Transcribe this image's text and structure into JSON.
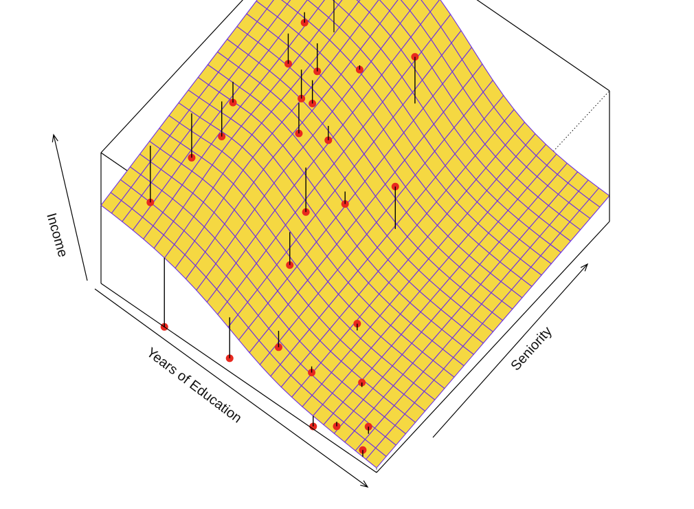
{
  "chart_data": {
    "type": "surface",
    "title": "",
    "xlabel": "Years of Education",
    "ylabel": "Seniority",
    "zlabel": "Income",
    "colors": {
      "surface_fill": "#f5d842",
      "surface_grid": "#6a2ee8",
      "points": "#e8281f",
      "residual_lines": "#000000",
      "box": "#000000"
    },
    "grid": true,
    "points": [
      [
        0.05,
        0.0,
        0.1
      ],
      [
        0.08,
        0.06,
        0.12
      ],
      [
        0.17,
        0.03,
        0.05
      ],
      [
        0.23,
        0.0,
        0.02
      ],
      [
        0.18,
        0.15,
        0.14
      ],
      [
        0.32,
        0.1,
        0.11
      ],
      [
        0.29,
        0.26,
        0.22
      ],
      [
        0.44,
        0.1,
        0.13
      ],
      [
        0.55,
        0.02,
        0.04
      ],
      [
        0.77,
        0.0,
        0.0
      ],
      [
        0.56,
        0.29,
        0.22
      ],
      [
        0.38,
        0.53,
        0.62
      ],
      [
        0.52,
        0.48,
        0.38
      ],
      [
        0.62,
        0.43,
        0.27
      ],
      [
        0.67,
        0.72,
        0.73
      ],
      [
        0.73,
        0.53,
        0.52
      ],
      [
        0.74,
        0.6,
        0.6
      ],
      [
        0.78,
        0.6,
        0.58
      ],
      [
        0.79,
        0.68,
        0.62
      ],
      [
        0.9,
        0.4,
        0.5
      ],
      [
        0.91,
        0.46,
        0.63
      ],
      [
        0.95,
        0.33,
        0.4
      ],
      [
        0.99,
        0.2,
        0.25
      ],
      [
        0.87,
        0.72,
        0.8
      ],
      [
        0.87,
        0.65,
        0.62
      ],
      [
        0.87,
        0.8,
        0.88
      ],
      [
        0.91,
        0.9,
        1.0
      ],
      [
        0.97,
        0.8,
        0.9
      ],
      [
        0.52,
        0.78,
        0.93
      ],
      [
        0.64,
        0.55,
        0.56
      ]
    ]
  }
}
